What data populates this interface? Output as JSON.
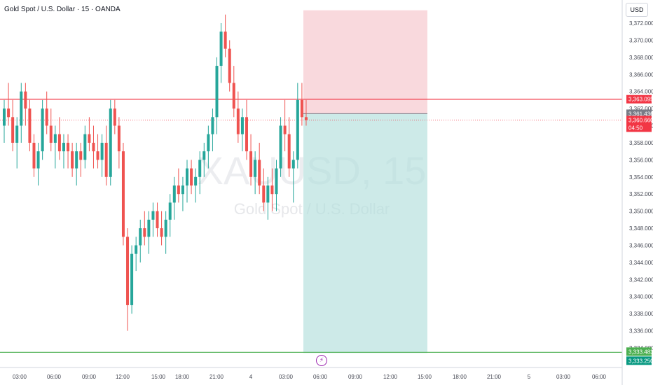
{
  "header": {
    "title": "Gold Spot / U.S. Dollar · 15 · OANDA",
    "currency": "USD"
  },
  "watermark": {
    "symbol": "XAUUSD, 15",
    "name": "Gold Spot / U.S. Dollar"
  },
  "icons": {
    "flash": "lightning-icon"
  },
  "colors": {
    "up": "#26a69a",
    "down": "#ef5350",
    "stop_zone": "#f7c9ce",
    "target_zone": "#b2dfdb",
    "resistance_line": "#f23645",
    "support_line": "#4caf50"
  },
  "chart_data": {
    "type": "candlestick",
    "title": "Gold Spot / U.S. Dollar · 15 · OANDA",
    "ylim": [
      3334,
      3372
    ],
    "y_ticks": [
      "3,372.000",
      "3,370.000",
      "3,368.000",
      "3,366.000",
      "3,364.000",
      "3,362.000",
      "3,360.000",
      "3,358.000",
      "3,356.000",
      "3,354.000",
      "3,352.000",
      "3,350.000",
      "3,348.000",
      "3,346.000",
      "3,344.000",
      "3,342.000",
      "3,340.000",
      "3,338.000",
      "3,336.000",
      "3,334.000"
    ],
    "x_ticks": [
      "03:00",
      "06:00",
      "09:00",
      "12:00",
      "15:00",
      "18:00",
      "21:00",
      "4",
      "03:00",
      "06:00",
      "09:00",
      "12:00",
      "15:00",
      "18:00",
      "21:00",
      "5",
      "03:00",
      "06:00"
    ],
    "hlines": [
      {
        "price": 3363.095,
        "label": "3,363.095",
        "color": "#f23645"
      },
      {
        "price": 3333.483,
        "label": "3,333.483",
        "color": "#4caf50"
      }
    ],
    "price_labels": [
      {
        "text": "3,361.436",
        "bg": "#787b86"
      },
      {
        "text": "3,360.660",
        "bg": "#f23645"
      },
      {
        "text": "04:50",
        "bg": "#f23645"
      },
      {
        "text": "3,333.250",
        "bg": "#089981"
      }
    ],
    "position": {
      "entry": 3361.4,
      "stop": 3373.5,
      "target": 3333.4
    },
    "candles": [
      [
        3360,
        3363,
        3358,
        3362
      ],
      [
        3362,
        3365,
        3360,
        3361
      ],
      [
        3361,
        3363,
        3357,
        3358
      ],
      [
        3358,
        3361,
        3355,
        3360
      ],
      [
        3360,
        3365,
        3358,
        3364
      ],
      [
        3364,
        3365,
        3360,
        3362
      ],
      [
        3362,
        3363,
        3357,
        3358
      ],
      [
        3358,
        3359,
        3354,
        3355
      ],
      [
        3355,
        3358,
        3353,
        3357
      ],
      [
        3357,
        3363,
        3356,
        3362
      ],
      [
        3362,
        3364,
        3359,
        3360
      ],
      [
        3360,
        3362,
        3357,
        3358
      ],
      [
        3358,
        3360,
        3355,
        3359
      ],
      [
        3359,
        3361,
        3356,
        3357
      ],
      [
        3357,
        3359,
        3355,
        3358
      ],
      [
        3358,
        3359,
        3355,
        3357
      ],
      [
        3357,
        3358,
        3354,
        3355
      ],
      [
        3355,
        3358,
        3353,
        3357
      ],
      [
        3357,
        3358,
        3354,
        3356
      ],
      [
        3356,
        3360,
        3355,
        3359
      ],
      [
        3359,
        3361,
        3357,
        3358
      ],
      [
        3358,
        3360,
        3355,
        3357
      ],
      [
        3357,
        3359,
        3355,
        3356
      ],
      [
        3356,
        3359,
        3354,
        3358
      ],
      [
        3358,
        3360,
        3353,
        3354
      ],
      [
        3354,
        3363,
        3353,
        3362
      ],
      [
        3362,
        3363,
        3359,
        3360
      ],
      [
        3360,
        3361,
        3355,
        3357
      ],
      [
        3357,
        3358,
        3346,
        3347
      ],
      [
        3347,
        3348,
        3336,
        3339
      ],
      [
        3339,
        3346,
        3338,
        3345
      ],
      [
        3345,
        3347,
        3343,
        3346
      ],
      [
        3346,
        3349,
        3344,
        3348
      ],
      [
        3348,
        3350,
        3346,
        3347
      ],
      [
        3347,
        3350,
        3345,
        3349
      ],
      [
        3349,
        3351,
        3347,
        3350
      ],
      [
        3350,
        3351,
        3347,
        3348
      ],
      [
        3348,
        3350,
        3346,
        3347
      ],
      [
        3347,
        3350,
        3345,
        3349
      ],
      [
        3349,
        3352,
        3347,
        3351
      ],
      [
        3351,
        3354,
        3349,
        3353
      ],
      [
        3353,
        3355,
        3351,
        3352
      ],
      [
        3352,
        3354,
        3350,
        3353
      ],
      [
        3353,
        3356,
        3351,
        3355
      ],
      [
        3355,
        3356,
        3352,
        3353
      ],
      [
        3353,
        3355,
        3351,
        3354
      ],
      [
        3354,
        3357,
        3352,
        3356
      ],
      [
        3356,
        3358,
        3354,
        3357
      ],
      [
        3357,
        3360,
        3355,
        3359
      ],
      [
        3359,
        3362,
        3357,
        3361
      ],
      [
        3361,
        3368,
        3359,
        3367
      ],
      [
        3367,
        3372,
        3365,
        3371
      ],
      [
        3371,
        3373,
        3368,
        3369
      ],
      [
        3369,
        3370,
        3364,
        3365
      ],
      [
        3365,
        3367,
        3361,
        3362
      ],
      [
        3362,
        3364,
        3358,
        3359
      ],
      [
        3359,
        3362,
        3357,
        3361
      ],
      [
        3361,
        3363,
        3356,
        3357
      ],
      [
        3357,
        3359,
        3353,
        3354
      ],
      [
        3354,
        3357,
        3352,
        3356
      ],
      [
        3356,
        3358,
        3352,
        3353
      ],
      [
        3353,
        3355,
        3350,
        3351
      ],
      [
        3351,
        3354,
        3349,
        3353
      ],
      [
        3353,
        3355,
        3350,
        3352
      ],
      [
        3352,
        3356,
        3350,
        3355
      ],
      [
        3355,
        3361,
        3354,
        3360
      ],
      [
        3360,
        3363,
        3357,
        3359
      ],
      [
        3359,
        3361,
        3354,
        3355
      ],
      [
        3355,
        3357,
        3351,
        3356
      ],
      [
        3356,
        3365,
        3355,
        3363
      ],
      [
        3363,
        3365,
        3360,
        3361
      ],
      [
        3361,
        3363,
        3360,
        3360.66
      ]
    ]
  }
}
